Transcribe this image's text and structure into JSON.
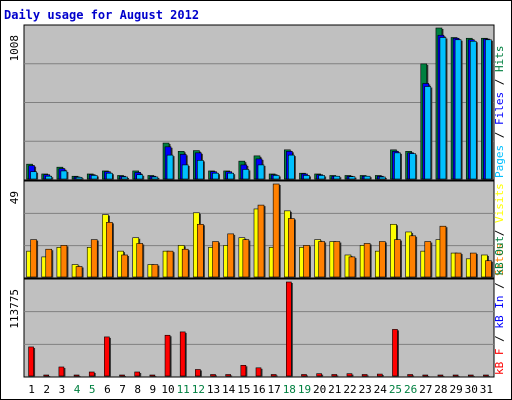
{
  "title": "Daily usage for August 2012",
  "colors": {
    "hits": "#008040",
    "files": "#0000ff",
    "pages": "#00c0ff",
    "visits": "#ffff00",
    "sites": "#ff8000",
    "kbin": "#0000ff",
    "kbout": "#008040",
    "kbf": "#ff0000",
    "panel_bg": "#c0c0c0",
    "grid": "#808080",
    "weekend_label": "#008040",
    "weekday_label": "#000000"
  },
  "chart_data": [
    {
      "type": "bar",
      "panel": "hits-files-pages",
      "y_max_label": "1008",
      "ylim": [
        0,
        1008
      ],
      "legend": [
        {
          "text": "Pages",
          "color": "#00c0ff"
        },
        {
          "text": " / ",
          "color": "#000000"
        },
        {
          "text": "Files",
          "color": "#0000ff"
        },
        {
          "text": " / ",
          "color": "#000000"
        },
        {
          "text": "Hits",
          "color": "#008040"
        }
      ],
      "categories": [
        "1",
        "2",
        "3",
        "4",
        "5",
        "6",
        "7",
        "8",
        "9",
        "10",
        "11",
        "12",
        "13",
        "14",
        "15",
        "16",
        "17",
        "18",
        "19",
        "20",
        "21",
        "22",
        "23",
        "24",
        "25",
        "26",
        "27",
        "28",
        "29",
        "30",
        "31"
      ],
      "series": [
        {
          "name": "Hits",
          "values": [
            105,
            40,
            85,
            25,
            40,
            60,
            30,
            60,
            30,
            245,
            190,
            195,
            60,
            60,
            125,
            160,
            40,
            200,
            45,
            40,
            30,
            30,
            30,
            30,
            200,
            190,
            770,
            1008,
            945,
            940,
            940
          ]
        },
        {
          "name": "Files",
          "values": [
            95,
            35,
            75,
            20,
            35,
            55,
            25,
            50,
            25,
            220,
            170,
            180,
            55,
            55,
            100,
            140,
            35,
            190,
            40,
            35,
            25,
            25,
            25,
            25,
            190,
            180,
            640,
            960,
            940,
            930,
            935
          ]
        },
        {
          "name": "Pages",
          "values": [
            55,
            25,
            60,
            18,
            30,
            45,
            20,
            35,
            20,
            165,
            100,
            130,
            45,
            45,
            70,
            100,
            30,
            165,
            30,
            30,
            25,
            22,
            25,
            20,
            180,
            175,
            620,
            945,
            930,
            920,
            930
          ]
        }
      ]
    },
    {
      "type": "bar",
      "panel": "visits-sites",
      "y_max_label": "49",
      "ylim": [
        0,
        49
      ],
      "legend": [
        {
          "text": "Sites",
          "color": "#ff8000"
        },
        {
          "text": " / ",
          "color": "#000000"
        },
        {
          "text": "Visits",
          "color": "#ffff00"
        }
      ],
      "categories": [
        "1",
        "2",
        "3",
        "4",
        "5",
        "6",
        "7",
        "8",
        "9",
        "10",
        "11",
        "12",
        "13",
        "14",
        "15",
        "16",
        "17",
        "18",
        "19",
        "20",
        "21",
        "22",
        "23",
        "24",
        "25",
        "26",
        "27",
        "28",
        "29",
        "30",
        "31"
      ],
      "series": [
        {
          "name": "Visits",
          "values": [
            14,
            11,
            16,
            7,
            16,
            33,
            14,
            21,
            7,
            14,
            17,
            34,
            16,
            17,
            21,
            36,
            16,
            35,
            16,
            20,
            19,
            12,
            17,
            14,
            28,
            24,
            14,
            20,
            13,
            10,
            12
          ]
        },
        {
          "name": "Sites",
          "values": [
            20,
            15,
            17,
            6,
            20,
            29,
            12,
            18,
            7,
            14,
            15,
            28,
            19,
            23,
            20,
            38,
            49,
            31,
            17,
            19,
            19,
            11,
            18,
            19,
            20,
            22,
            19,
            27,
            13,
            13,
            9
          ]
        }
      ]
    },
    {
      "type": "bar",
      "panel": "kbf-kbin-kbout",
      "y_max_label": "113775",
      "ylim": [
        0,
        113775
      ],
      "legend": [
        {
          "text": "kB F",
          "color": "#ff0000"
        },
        {
          "text": " / ",
          "color": "#000000"
        },
        {
          "text": "kB In",
          "color": "#0000ff"
        },
        {
          "text": " / ",
          "color": "#000000"
        },
        {
          "text": "kB Out",
          "color": "#008040"
        }
      ],
      "categories": [
        "1",
        "2",
        "3",
        "4",
        "5",
        "6",
        "7",
        "8",
        "9",
        "10",
        "11",
        "12",
        "13",
        "14",
        "15",
        "16",
        "17",
        "18",
        "19",
        "20",
        "21",
        "22",
        "23",
        "24",
        "25",
        "26",
        "27",
        "28",
        "29",
        "30",
        "31"
      ],
      "series": [
        {
          "name": "kB F",
          "values": [
            36000,
            1500,
            12000,
            1500,
            6000,
            48000,
            1500,
            6000,
            2000,
            50000,
            54000,
            9000,
            3000,
            3000,
            14000,
            11000,
            3000,
            113775,
            3000,
            4000,
            3000,
            4000,
            3000,
            3500,
            57000,
            3000,
            1000,
            1000,
            1000,
            1000,
            1000
          ]
        }
      ]
    }
  ],
  "x_labels": [
    {
      "text": "1",
      "weekend": false
    },
    {
      "text": "2",
      "weekend": false
    },
    {
      "text": "3",
      "weekend": false
    },
    {
      "text": "4",
      "weekend": true
    },
    {
      "text": "5",
      "weekend": true
    },
    {
      "text": "6",
      "weekend": false
    },
    {
      "text": "7",
      "weekend": false
    },
    {
      "text": "8",
      "weekend": false
    },
    {
      "text": "9",
      "weekend": false
    },
    {
      "text": "10",
      "weekend": false
    },
    {
      "text": "11",
      "weekend": true
    },
    {
      "text": "12",
      "weekend": true
    },
    {
      "text": "13",
      "weekend": false
    },
    {
      "text": "14",
      "weekend": false
    },
    {
      "text": "15",
      "weekend": false
    },
    {
      "text": "16",
      "weekend": false
    },
    {
      "text": "17",
      "weekend": false
    },
    {
      "text": "18",
      "weekend": true
    },
    {
      "text": "19",
      "weekend": true
    },
    {
      "text": "20",
      "weekend": false
    },
    {
      "text": "21",
      "weekend": false
    },
    {
      "text": "22",
      "weekend": false
    },
    {
      "text": "23",
      "weekend": false
    },
    {
      "text": "24",
      "weekend": false
    },
    {
      "text": "25",
      "weekend": true
    },
    {
      "text": "26",
      "weekend": true
    },
    {
      "text": "27",
      "weekend": false
    },
    {
      "text": "28",
      "weekend": false
    },
    {
      "text": "29",
      "weekend": false
    },
    {
      "text": "30",
      "weekend": false
    },
    {
      "text": "31",
      "weekend": false
    }
  ]
}
